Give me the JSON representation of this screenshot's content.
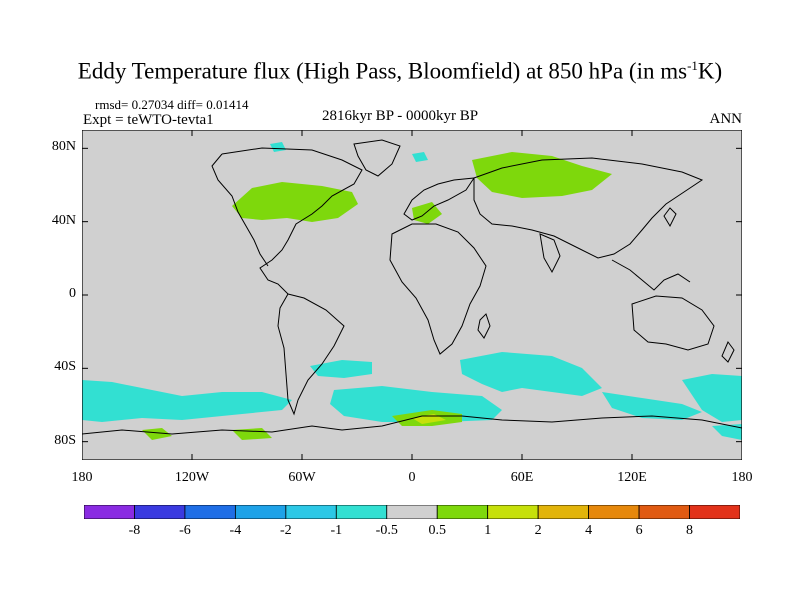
{
  "title": {
    "main": "Eddy Temperature flux (High Pass, Bloomfield) at 850 hPa (in ms",
    "sup": "-1",
    "unit_end": "K)"
  },
  "stats": "rmsd= 0.27034 diff= 0.01414",
  "experiment": "Expt = teWTO-tevta1",
  "period": "2816kyr BP - 0000kyr BP",
  "season": "ANN",
  "axes": {
    "lat_labels": [
      "80N",
      "40N",
      "0",
      "40S",
      "80S"
    ],
    "lat_values": [
      80,
      40,
      0,
      -40,
      -80
    ],
    "lon_labels": [
      "180",
      "120W",
      "60W",
      "0",
      "60E",
      "120E",
      "180"
    ],
    "lon_values": [
      -180,
      -120,
      -60,
      0,
      60,
      120,
      180
    ],
    "lat_range": [
      -90,
      90
    ],
    "lon_range": [
      -180,
      180
    ]
  },
  "colorbar": {
    "labels": [
      "-8",
      "-6",
      "-4",
      "-2",
      "-1",
      "-0.5",
      "0.5",
      "1",
      "2",
      "4",
      "6",
      "8"
    ],
    "colors": [
      "#8a2be2",
      "#3a3ae0",
      "#1f6ee6",
      "#1ea2e8",
      "#2cc8e6",
      "#32e0d2",
      "#d0d0d0",
      "#7ed80c",
      "#c6e00a",
      "#e2b40a",
      "#e6880c",
      "#e05a12",
      "#e2321a"
    ]
  },
  "colors": {
    "land_sea_background": "#d0d0d0",
    "coastline": "#000000"
  }
}
